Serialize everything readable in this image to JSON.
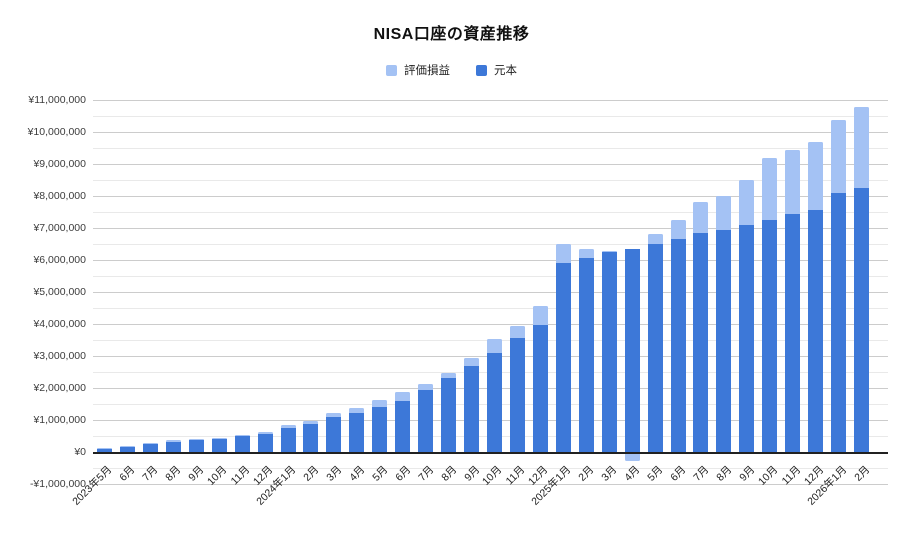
{
  "title": "NISA口座の資産推移",
  "legend": [
    {
      "label": "評価損益",
      "color": "#a4c2f4"
    },
    {
      "label": "元本",
      "color": "#3d78d8"
    }
  ],
  "colors": {
    "principal": "#3d78d8",
    "gain": "#a4c2f4",
    "grid_major": "#cccccc",
    "grid_minor": "#e9e9e9",
    "axis_line": "#212121"
  },
  "chart_data": {
    "type": "bar",
    "stacked": true,
    "title": "NISA口座の資産推移",
    "xlabel": "",
    "ylabel": "",
    "ylim": [
      -1000000,
      11000000
    ],
    "ytick_step": 1000000,
    "yminor_step": 500000,
    "grid": true,
    "legend_position": "top",
    "categories": [
      "2023年5月",
      "6月",
      "7月",
      "8月",
      "9月",
      "10月",
      "11月",
      "12月",
      "2024年1月",
      "2月",
      "3月",
      "4月",
      "5月",
      "6月",
      "7月",
      "8月",
      "9月",
      "10月",
      "11月",
      "12月",
      "2025年1月",
      "2月",
      "3月",
      "4月",
      "5月",
      "6月",
      "7月",
      "8月",
      "9月",
      "10月",
      "11月",
      "12月",
      "2026年1月",
      "2月"
    ],
    "series": [
      {
        "name": "元本",
        "color": "#3d78d8",
        "values": [
          100000,
          170000,
          250000,
          320000,
          370000,
          400000,
          500000,
          570000,
          750000,
          870000,
          1080000,
          1210000,
          1400000,
          1600000,
          1940000,
          2300000,
          2700000,
          3080000,
          3550000,
          3960000,
          5900000,
          6070000,
          6260000,
          6340000,
          6500000,
          6650000,
          6850000,
          6950000,
          7100000,
          7250000,
          7430000,
          7550000,
          8100000,
          8250000
        ]
      },
      {
        "name": "評価損益",
        "color": "#a4c2f4",
        "values": [
          10000,
          20000,
          20000,
          40000,
          40000,
          30000,
          30000,
          50000,
          80000,
          100000,
          130000,
          170000,
          230000,
          280000,
          180000,
          160000,
          240000,
          450000,
          390000,
          600000,
          600000,
          260000,
          30000,
          -220000,
          300000,
          600000,
          950000,
          1060000,
          1400000,
          1930000,
          2010000,
          2150000,
          2280000,
          2540000
        ]
      }
    ],
    "y_ticks": [
      {
        "value": 11000000,
        "label": "¥11,000,000"
      },
      {
        "value": 10000000,
        "label": "¥10,000,000"
      },
      {
        "value": 9000000,
        "label": "¥9,000,000"
      },
      {
        "value": 8000000,
        "label": "¥8,000,000"
      },
      {
        "value": 7000000,
        "label": "¥7,000,000"
      },
      {
        "value": 6000000,
        "label": "¥6,000,000"
      },
      {
        "value": 5000000,
        "label": "¥5,000,000"
      },
      {
        "value": 4000000,
        "label": "¥4,000,000"
      },
      {
        "value": 3000000,
        "label": "¥3,000,000"
      },
      {
        "value": 2000000,
        "label": "¥2,000,000"
      },
      {
        "value": 1000000,
        "label": "¥1,000,000"
      },
      {
        "value": 0,
        "label": "¥0"
      },
      {
        "value": -1000000,
        "label": "-¥1,000,000"
      }
    ]
  }
}
